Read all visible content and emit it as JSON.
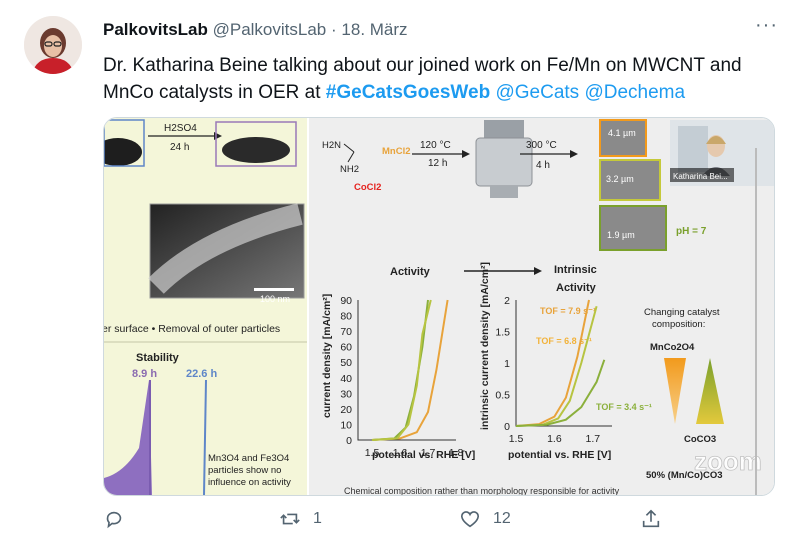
{
  "tweet": {
    "display_name": "PalkovitsLab",
    "handle": "@PalkovitsLab",
    "separator": "·",
    "date": "18. März",
    "more": "···",
    "text_before": "Dr. Katharina Beine talking about our joined work on Fe/Mn on MWCNT and MnCo catalysts in OER at ",
    "hashtag": "#GeCatsGoesWeb",
    "mention_1": "@GeCats",
    "mention_2": "@Dechema"
  },
  "slide": {
    "left": {
      "reaction_1": "H2SO4",
      "reaction_1_time": "24 h",
      "scale": "100 nm",
      "caption": "er surface •   Removal of outer particles",
      "stability_title": "Stability",
      "stab_1": "8.9 h",
      "stab_2": "22.6 h",
      "note_1": "Mn3O4  and  Fe3O4",
      "note_2": "particles  show  no",
      "note_3": "influence on activity"
    },
    "right": {
      "chem_1": "H2N",
      "chem_2": "NH2",
      "reagent_mn": "MnCl2",
      "reagent_co": "CoCl2",
      "step_1_temp": "120 °C",
      "step_1_time": "12 h",
      "step_2_temp": "300 °C",
      "step_2_time": "4 h",
      "size_1": "4.1 µm",
      "size_2": "3.2 µm",
      "size_3": "1.9 µm",
      "ph": "pH = 7",
      "presenter": "Katharina Bei...",
      "activity": "Activity",
      "intrinsic": "Intrinsic",
      "intrinsic_2": "Activity",
      "changing_1": "Changing catalyst",
      "changing_2": "composition:",
      "comp_top": "MnCo2O4",
      "comp_bottom": "CoCO3",
      "comp_mix": "50% (Mn/Co)CO3",
      "zoom": "zoom",
      "footer": "Chemical composition rather than morphology responsible for activity"
    }
  },
  "chart_data": [
    {
      "type": "line",
      "xlabel": "potential vs. RHE [V]",
      "ylabel": "current density [mA/cm²]",
      "xticks": [
        "1.5",
        "1.6",
        "1.7",
        "1.8"
      ],
      "yticks": [
        "0",
        "10",
        "20",
        "30",
        "40",
        "50",
        "60",
        "70",
        "80",
        "90"
      ],
      "xlim": [
        1.45,
        1.8
      ],
      "ylim": [
        0,
        90
      ],
      "series": [
        {
          "color": "#e8a33b",
          "x": [
            1.5,
            1.6,
            1.66,
            1.7,
            1.73,
            1.77
          ],
          "y": [
            0,
            1,
            5,
            18,
            45,
            90
          ]
        },
        {
          "color": "#8bb03c",
          "x": [
            1.5,
            1.58,
            1.62,
            1.65,
            1.68,
            1.7
          ],
          "y": [
            0,
            1,
            8,
            28,
            60,
            90
          ]
        },
        {
          "color": "#b7c441",
          "x": [
            1.5,
            1.59,
            1.63,
            1.66,
            1.68,
            1.71
          ],
          "y": [
            0,
            1,
            10,
            35,
            68,
            90
          ]
        }
      ]
    },
    {
      "type": "line",
      "xlabel": "potential vs. RHE [V]",
      "ylabel": "intrinsic current density [mA/cm²]",
      "xticks": [
        "1.5",
        "1.6",
        "1.7"
      ],
      "yticks": [
        "0",
        "0.5",
        "1",
        "1.5",
        "2"
      ],
      "xlim": [
        1.5,
        1.75
      ],
      "ylim": [
        0,
        2
      ],
      "annotations": [
        "TOF = 7.9 s⁻¹",
        "TOF = 6.8 s⁻¹",
        "TOF = 3.4 s⁻¹"
      ],
      "series": [
        {
          "color": "#e8a33b",
          "x": [
            1.5,
            1.56,
            1.6,
            1.63,
            1.66,
            1.69
          ],
          "y": [
            0,
            0.03,
            0.15,
            0.45,
            1.1,
            2.0
          ]
        },
        {
          "color": "#b7c441",
          "x": [
            1.5,
            1.57,
            1.61,
            1.64,
            1.67,
            1.71
          ],
          "y": [
            0,
            0.02,
            0.12,
            0.4,
            1.0,
            1.9
          ]
        },
        {
          "color": "#8bb03c",
          "x": [
            1.5,
            1.58,
            1.63,
            1.67,
            1.71,
            1.73
          ],
          "y": [
            0,
            0.02,
            0.1,
            0.3,
            0.7,
            1.05
          ]
        }
      ]
    }
  ],
  "actions": {
    "reply_count": "",
    "retweet_count": "1",
    "like_count": "12"
  },
  "colors": {
    "link": "#1d9bf0",
    "muted": "#536471",
    "orange": "#e8a33b",
    "green": "#8bb03c",
    "red": "#e5231f"
  }
}
